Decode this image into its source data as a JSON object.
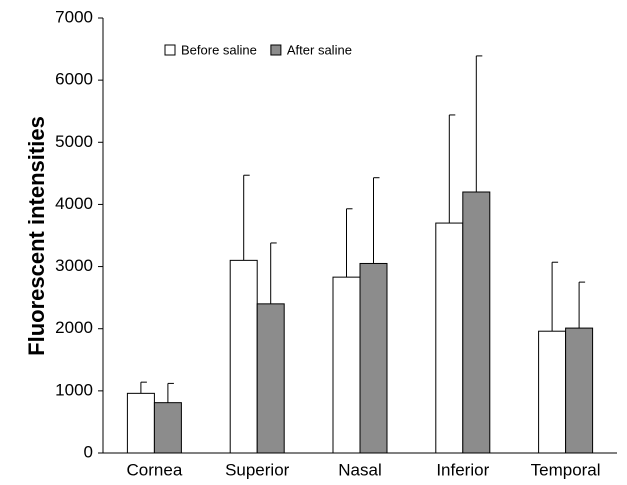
{
  "chart_data": {
    "type": "bar",
    "y_label": "Fluorescent intensities",
    "categories": [
      "Cornea",
      "Superior",
      "Nasal",
      "Inferior",
      "Temporal"
    ],
    "series": [
      {
        "name": "Before saline",
        "color": "#ffffff",
        "values": [
          960,
          3100,
          2830,
          3700,
          1960
        ],
        "errors": [
          180,
          1370,
          1100,
          1740,
          1110
        ]
      },
      {
        "name": "After saline",
        "color": "#8c8c8c",
        "values": [
          810,
          2400,
          3050,
          4200,
          2010
        ],
        "errors": [
          310,
          980,
          1380,
          2190,
          740
        ]
      }
    ],
    "ylim": [
      0,
      7000
    ],
    "yticks": [
      0,
      1000,
      2000,
      3000,
      4000,
      5000,
      6000,
      7000
    ],
    "grid": false,
    "legend": "top-left"
  }
}
